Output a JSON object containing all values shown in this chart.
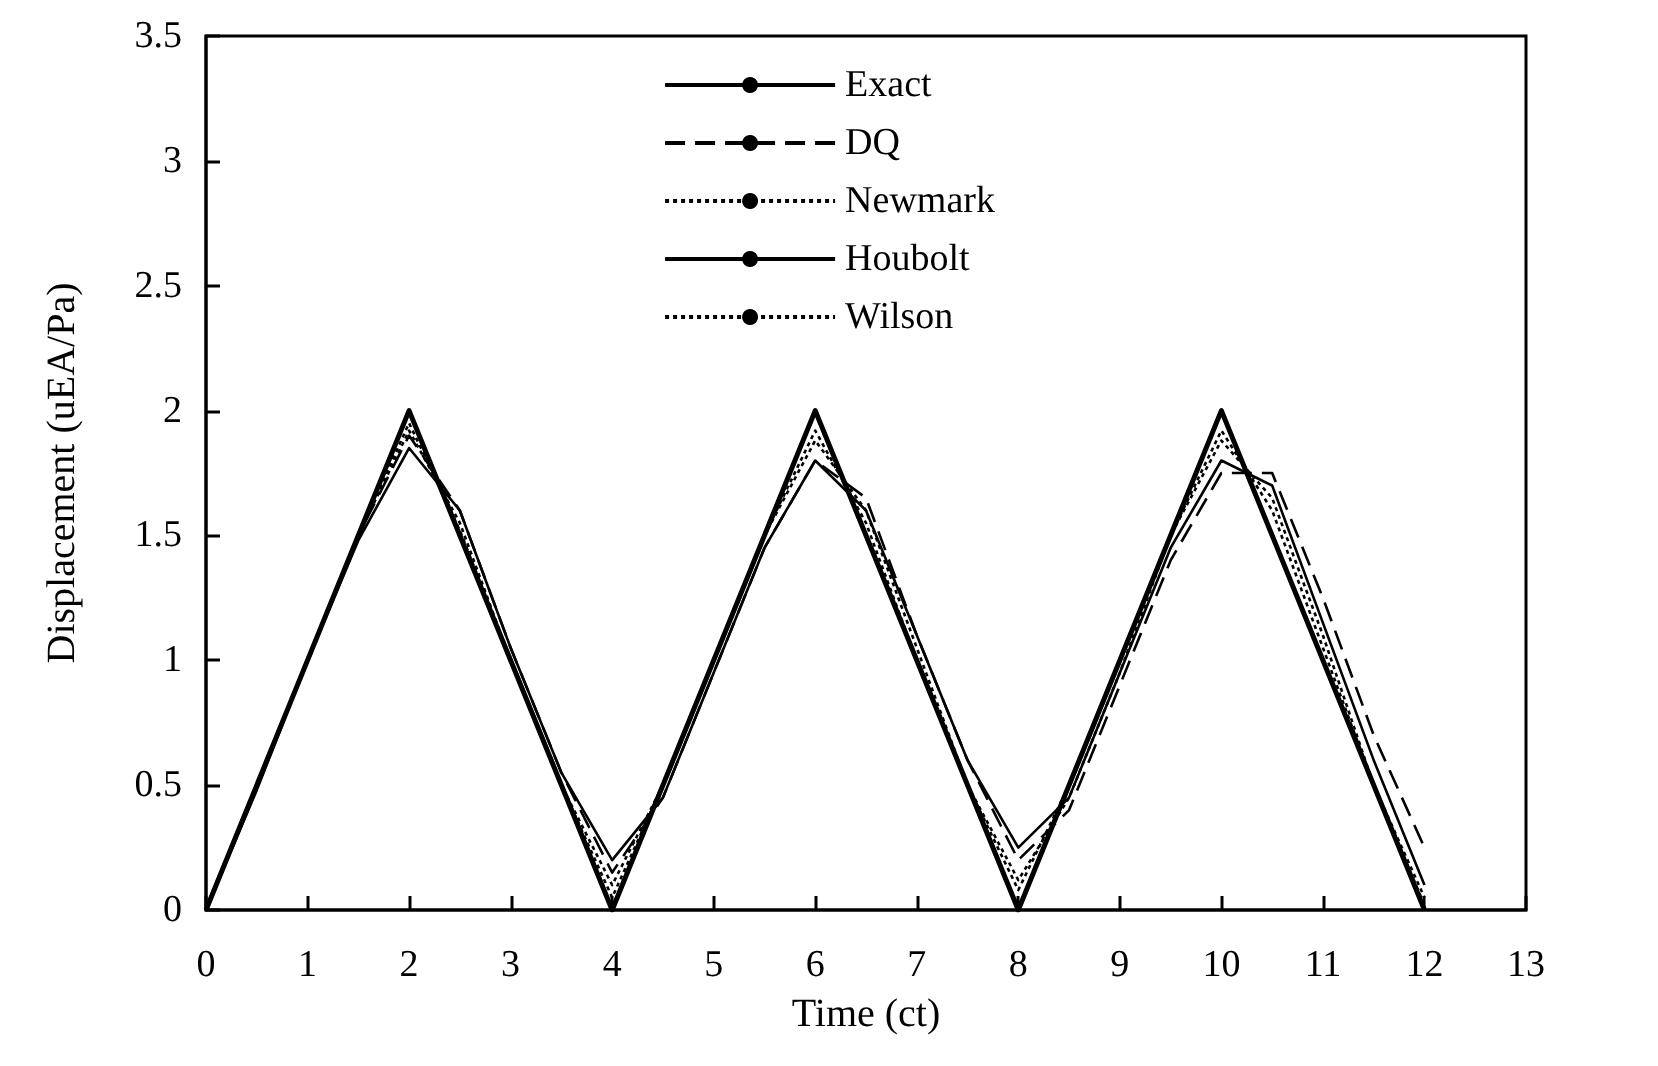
{
  "chart_data": {
    "type": "line",
    "xlabel": "Time (ct)",
    "ylabel": "Displacement (uEA/Pa)",
    "x": [
      0,
      0.5,
      1,
      1.5,
      2,
      2.5,
      3,
      3.5,
      4,
      4.5,
      5,
      5.5,
      6,
      6.5,
      7,
      7.5,
      8,
      8.5,
      9,
      9.5,
      10,
      10.5,
      11,
      11.5,
      12
    ],
    "series": [
      {
        "name": "Exact",
        "color": "#000000",
        "line_style": "solid",
        "x": [
          0,
          2,
          4,
          6,
          8,
          10,
          12
        ],
        "values": [
          0,
          2,
          0,
          2,
          0,
          2,
          0
        ]
      },
      {
        "name": "DQ",
        "color": "#000000",
        "line_style": "dashed",
        "values": [
          0,
          0.5,
          1,
          1.5,
          1.9,
          1.6,
          1.05,
          0.55,
          0.15,
          0.45,
          0.95,
          1.45,
          1.8,
          1.65,
          1.1,
          0.6,
          0.2,
          0.4,
          0.9,
          1.4,
          1.75,
          1.75,
          1.25,
          0.7,
          0.25
        ]
      },
      {
        "name": "Newmark",
        "color": "#000000",
        "line_style": "dotted",
        "values": [
          0,
          0.5,
          1,
          1.5,
          1.92,
          1.55,
          1,
          0.5,
          0.1,
          0.5,
          1,
          1.5,
          1.88,
          1.6,
          1.05,
          0.5,
          0.12,
          0.45,
          0.95,
          1.5,
          1.88,
          1.65,
          1.1,
          0.5,
          0.05
        ]
      },
      {
        "name": "Houbolt",
        "color": "#000000",
        "line_style": "solid",
        "values": [
          0,
          0.48,
          1,
          1.48,
          1.85,
          1.6,
          1.05,
          0.55,
          0.2,
          0.45,
          0.95,
          1.45,
          1.8,
          1.6,
          1.1,
          0.6,
          0.25,
          0.45,
          0.95,
          1.45,
          1.8,
          1.7,
          1.15,
          0.6,
          0.1
        ]
      },
      {
        "name": "Wilson",
        "color": "#000000",
        "line_style": "dotted",
        "values": [
          0,
          0.5,
          1,
          1.5,
          1.95,
          1.52,
          1,
          0.5,
          0.05,
          0.5,
          1,
          1.5,
          1.92,
          1.55,
          1,
          0.5,
          0.08,
          0.5,
          1,
          1.5,
          1.92,
          1.6,
          1.05,
          0.5,
          0.02
        ]
      }
    ],
    "xlim": [
      0,
      13
    ],
    "xticks": [
      0,
      1,
      2,
      3,
      4,
      5,
      6,
      7,
      8,
      9,
      10,
      11,
      12,
      13
    ],
    "ylim": [
      0,
      3.5
    ],
    "yticks": [
      0,
      0.5,
      1,
      1.5,
      2,
      2.5,
      3,
      3.5
    ],
    "grid": false,
    "legend": "top",
    "marker": "none"
  }
}
